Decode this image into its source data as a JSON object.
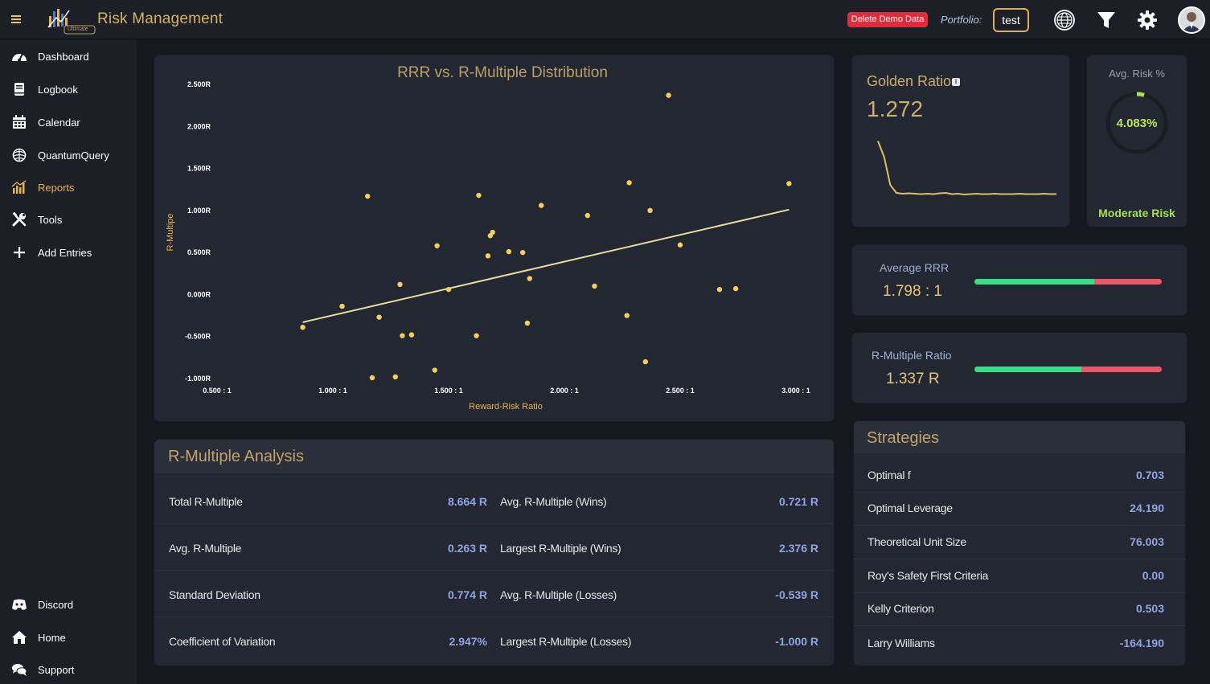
{
  "app": {
    "title": "Risk Management",
    "logo_badge": "Ultimate",
    "demo_button": "Delete Demo Data",
    "portfolio_label": "Portfolio:",
    "portfolio_value": "test"
  },
  "sidebar": {
    "items": [
      {
        "label": "Dashboard",
        "icon": "dashboard-icon"
      },
      {
        "label": "Logbook",
        "icon": "book-icon"
      },
      {
        "label": "Calendar",
        "icon": "calendar-icon"
      },
      {
        "label": "QuantumQuery",
        "icon": "brain-icon"
      },
      {
        "label": "Reports",
        "icon": "chart-bar-icon",
        "active": true
      },
      {
        "label": "Tools",
        "icon": "tools-icon"
      },
      {
        "label": "Add Entries",
        "icon": "plus-icon"
      }
    ],
    "bottom": [
      {
        "label": "Discord",
        "icon": "discord-icon"
      },
      {
        "label": "Home",
        "icon": "home-icon"
      },
      {
        "label": "Support",
        "icon": "comments-icon"
      }
    ]
  },
  "colors": {
    "accent": "#d9b25e",
    "point": "#f6cf5a",
    "trend": "#e6dca0",
    "good": "#35e08a",
    "bad": "#f0566a",
    "risk": "#a6e04e"
  },
  "chart_data": {
    "type": "scatter",
    "title": "RRR vs. R-Multiple Distribution",
    "xlabel": "Reward-Risk Ratio",
    "ylabel": "R-Multipe",
    "xlim": [
      0.5,
      3.0
    ],
    "ylim": [
      -1.0,
      2.5
    ],
    "x_ticks": [
      0.5,
      1.0,
      1.5,
      2.0,
      2.5,
      3.0
    ],
    "x_tick_labels": [
      "0.500 : 1",
      "1.000 : 1",
      "1.500 : 1",
      "2.000 : 1",
      "2.500 : 1",
      "3.000 : 1"
    ],
    "y_ticks": [
      -1.0,
      -0.5,
      0.0,
      0.5,
      1.0,
      1.5,
      2.0,
      2.5
    ],
    "y_tick_labels": [
      "-1.000R",
      "-0.500R",
      "0.000R",
      "0.500R",
      "1.000R",
      "1.500R",
      "2.000R",
      "2.500R"
    ],
    "points": [
      {
        "x": 0.87,
        "y": -0.39
      },
      {
        "x": 1.04,
        "y": -0.14
      },
      {
        "x": 1.15,
        "y": 1.17
      },
      {
        "x": 1.17,
        "y": -0.99
      },
      {
        "x": 1.2,
        "y": -0.27
      },
      {
        "x": 1.27,
        "y": -0.98
      },
      {
        "x": 1.29,
        "y": 0.12
      },
      {
        "x": 1.3,
        "y": -0.49
      },
      {
        "x": 1.34,
        "y": -0.48
      },
      {
        "x": 1.44,
        "y": -0.9
      },
      {
        "x": 1.45,
        "y": 0.58
      },
      {
        "x": 1.5,
        "y": 0.06
      },
      {
        "x": 1.62,
        "y": -0.49
      },
      {
        "x": 1.63,
        "y": 1.18
      },
      {
        "x": 1.67,
        "y": 0.46
      },
      {
        "x": 1.68,
        "y": 0.7
      },
      {
        "x": 1.69,
        "y": 0.74
      },
      {
        "x": 1.76,
        "y": 0.51
      },
      {
        "x": 1.82,
        "y": 0.5
      },
      {
        "x": 1.84,
        "y": -0.34
      },
      {
        "x": 1.85,
        "y": 0.19
      },
      {
        "x": 1.9,
        "y": 1.06
      },
      {
        "x": 2.1,
        "y": 0.94
      },
      {
        "x": 2.13,
        "y": 0.1
      },
      {
        "x": 2.27,
        "y": -0.25
      },
      {
        "x": 2.28,
        "y": 1.33
      },
      {
        "x": 2.35,
        "y": -0.8
      },
      {
        "x": 2.37,
        "y": 1.0
      },
      {
        "x": 2.45,
        "y": 2.37
      },
      {
        "x": 2.5,
        "y": 0.59
      },
      {
        "x": 2.67,
        "y": 0.06
      },
      {
        "x": 2.74,
        "y": 0.07
      },
      {
        "x": 2.97,
        "y": 1.32
      }
    ],
    "trendline": [
      {
        "x": 0.87,
        "y": -0.33
      },
      {
        "x": 2.97,
        "y": 1.01
      }
    ],
    "grid": false,
    "legend": "none"
  },
  "golden": {
    "title": "Golden Ratio",
    "info": "i",
    "value": "1.272",
    "trend": [
      2.6,
      2.2,
      1.5,
      1.3,
      1.28,
      1.29,
      1.28,
      1.27,
      1.28,
      1.27,
      1.29,
      1.3,
      1.27,
      1.28,
      1.26,
      1.27,
      1.28,
      1.27,
      1.27,
      1.28,
      1.27,
      1.27,
      1.27,
      1.28,
      1.27,
      1.27,
      1.27,
      1.28,
      1.27,
      1.272
    ]
  },
  "risk": {
    "title": "Avg. Risk %",
    "value": "4.083%",
    "fraction": 0.04083,
    "label": "Moderate Risk"
  },
  "rrr": {
    "label": "Average RRR",
    "value": "1.798 : 1",
    "good_fraction": 0.64
  },
  "rmultiple": {
    "label": "R-Multiple Ratio",
    "value": "1.337 R",
    "good_fraction": 0.57
  },
  "analysis": {
    "title": "R-Multiple Analysis",
    "rows": [
      {
        "l1": "Total R-Multiple",
        "v1": "8.664 R",
        "l2": "Avg. R-Multiple (Wins)",
        "v2": "0.721 R"
      },
      {
        "l1": "Avg. R-Multiple",
        "v1": "0.263 R",
        "l2": "Largest R-Multiple (Wins)",
        "v2": "2.376 R"
      },
      {
        "l1": "Standard Deviation",
        "v1": "0.774 R",
        "l2": "Avg. R-Multiple (Losses)",
        "v2": "-0.539 R"
      },
      {
        "l1": "Coefficient of Variation",
        "v1": "2.947%",
        "l2": "Largest R-Multiple (Losses)",
        "v2": "-1.000 R"
      }
    ]
  },
  "strategies": {
    "title": "Strategies",
    "rows": [
      {
        "label": "Optimal f",
        "value": "0.703"
      },
      {
        "label": "Optimal Leverage",
        "value": "24.190"
      },
      {
        "label": "Theoretical Unit Size",
        "value": "76.003"
      },
      {
        "label": "Roy's Safety First Criteria",
        "value": "0.00"
      },
      {
        "label": "Kelly Criterion",
        "value": "0.503"
      },
      {
        "label": "Larry Williams",
        "value": "-164.190"
      }
    ]
  }
}
